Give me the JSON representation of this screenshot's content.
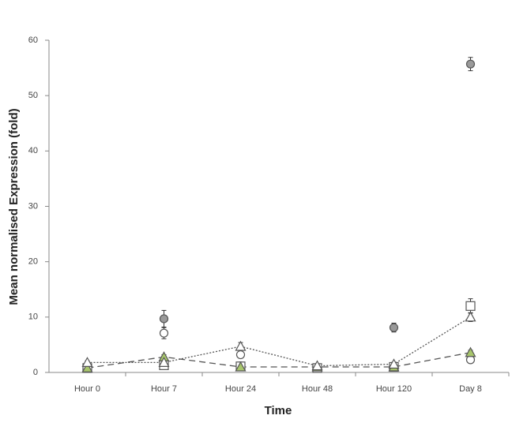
{
  "chart_data": {
    "type": "line",
    "x_label": "Time",
    "y_label": "Mean normalised Expression (fold)",
    "categories": [
      "Hour 0",
      "Hour 7",
      "Hour 24",
      "Hour 48",
      "Hour 120",
      "Day 8"
    ],
    "ylim": [
      0,
      60
    ],
    "yticks": [
      0,
      10,
      20,
      30,
      40,
      50,
      60
    ],
    "grid": false,
    "series": [
      {
        "marker": "circle",
        "color": "#9a9a9a",
        "line": "none",
        "values": [
          0.8,
          9.7,
          1.2,
          0.8,
          8.1,
          55.7
        ],
        "errors": [
          0.5,
          1.5,
          0.3,
          0.3,
          0.8,
          1.2
        ]
      },
      {
        "marker": "circle",
        "color": "#ffffff",
        "line": "none",
        "values": [
          1.0,
          7.1,
          3.2,
          0.8,
          1.2,
          2.3
        ],
        "errors": [
          0.3,
          1.0,
          0.5,
          0.2,
          0.3,
          0.4
        ]
      },
      {
        "marker": "square",
        "color": "#ffffff",
        "line": "none",
        "values": [
          0.8,
          1.3,
          1.1,
          0.8,
          1.0,
          12.0
        ],
        "errors": [
          0.2,
          0.3,
          0.2,
          0.2,
          0.2,
          1.3
        ]
      },
      {
        "marker": "triangle",
        "color": "#a8c66c",
        "line": "dashed",
        "values": [
          0.8,
          2.8,
          1.0,
          1.0,
          1.0,
          3.6
        ],
        "errors": [
          0.2,
          0.4,
          0.2,
          0.2,
          0.2,
          0.4
        ]
      },
      {
        "marker": "triangle",
        "color": "#ffffff",
        "line": "dotted",
        "values": [
          1.8,
          1.8,
          4.7,
          1.2,
          1.5,
          10.0
        ],
        "errors": [
          0.3,
          0.3,
          0.7,
          0.2,
          0.3,
          0.8
        ]
      }
    ]
  }
}
